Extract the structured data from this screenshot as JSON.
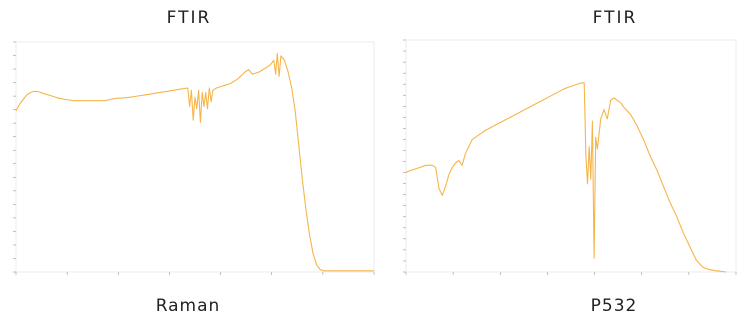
{
  "panels": [
    {
      "title": "FTIR",
      "caption": "Raman",
      "line_color": "#f5b54a",
      "chart_data": {
        "type": "line",
        "title": "FTIR",
        "series": [
          {
            "x": [
              0,
              0.01,
              0.02,
              0.03,
              0.04,
              0.05,
              0.06,
              0.08,
              0.1,
              0.12,
              0.14,
              0.16,
              0.18,
              0.2,
              0.22,
              0.24,
              0.25,
              0.26,
              0.28,
              0.3,
              0.32,
              0.34,
              0.36,
              0.38,
              0.4,
              0.42,
              0.44,
              0.46,
              0.48,
              0.485,
              0.49,
              0.495,
              0.5,
              0.505,
              0.51,
              0.515,
              0.52,
              0.525,
              0.53,
              0.535,
              0.54,
              0.545,
              0.55,
              0.56,
              0.58,
              0.6,
              0.62,
              0.63,
              0.64,
              0.65,
              0.66,
              0.68,
              0.7,
              0.71,
              0.715,
              0.72,
              0.725,
              0.73,
              0.735,
              0.74,
              0.75,
              0.76,
              0.77,
              0.78,
              0.79,
              0.8,
              0.81,
              0.82,
              0.83,
              0.84,
              0.85,
              0.86,
              1.0
            ],
            "y": [
              0.7,
              0.73,
              0.75,
              0.77,
              0.78,
              0.785,
              0.785,
              0.775,
              0.765,
              0.755,
              0.75,
              0.745,
              0.745,
              0.745,
              0.745,
              0.745,
              0.745,
              0.75,
              0.755,
              0.757,
              0.76,
              0.765,
              0.77,
              0.775,
              0.78,
              0.785,
              0.79,
              0.795,
              0.8,
              0.72,
              0.79,
              0.66,
              0.76,
              0.71,
              0.79,
              0.65,
              0.78,
              0.72,
              0.78,
              0.71,
              0.8,
              0.74,
              0.79,
              0.8,
              0.81,
              0.82,
              0.84,
              0.855,
              0.87,
              0.88,
              0.86,
              0.87,
              0.89,
              0.9,
              0.91,
              0.92,
              0.86,
              0.95,
              0.85,
              0.94,
              0.92,
              0.87,
              0.8,
              0.7,
              0.55,
              0.4,
              0.27,
              0.16,
              0.08,
              0.03,
              0.01,
              0.005,
              0.005
            ]
          }
        ]
      }
    },
    {
      "title": "FTIR",
      "caption": "P532",
      "line_color": "#f5b54a",
      "chart_data": {
        "type": "line",
        "title": "FTIR",
        "series": [
          {
            "x": [
              0,
              0.02,
              0.04,
              0.06,
              0.08,
              0.09,
              0.1,
              0.11,
              0.12,
              0.13,
              0.14,
              0.15,
              0.16,
              0.17,
              0.18,
              0.2,
              0.22,
              0.24,
              0.26,
              0.28,
              0.3,
              0.32,
              0.34,
              0.36,
              0.38,
              0.4,
              0.42,
              0.44,
              0.46,
              0.48,
              0.5,
              0.52,
              0.53,
              0.54,
              0.545,
              0.55,
              0.555,
              0.56,
              0.565,
              0.57,
              0.575,
              0.58,
              0.59,
              0.6,
              0.61,
              0.62,
              0.63,
              0.64,
              0.65,
              0.66,
              0.68,
              0.7,
              0.72,
              0.74,
              0.76,
              0.78,
              0.8,
              0.82,
              0.84,
              0.86,
              0.88,
              0.9,
              0.92,
              0.94,
              0.96,
              0.97
            ],
            "y": [
              0.43,
              0.44,
              0.45,
              0.46,
              0.46,
              0.45,
              0.36,
              0.33,
              0.37,
              0.42,
              0.45,
              0.47,
              0.48,
              0.46,
              0.51,
              0.57,
              0.59,
              0.61,
              0.625,
              0.64,
              0.655,
              0.67,
              0.685,
              0.7,
              0.715,
              0.73,
              0.745,
              0.76,
              0.775,
              0.79,
              0.8,
              0.81,
              0.815,
              0.815,
              0.5,
              0.38,
              0.54,
              0.4,
              0.65,
              0.06,
              0.58,
              0.53,
              0.66,
              0.7,
              0.66,
              0.74,
              0.75,
              0.74,
              0.73,
              0.71,
              0.68,
              0.63,
              0.57,
              0.5,
              0.44,
              0.37,
              0.3,
              0.24,
              0.17,
              0.11,
              0.05,
              0.02,
              0.01,
              0.005,
              0.002,
              0.0
            ]
          }
        ]
      }
    }
  ]
}
